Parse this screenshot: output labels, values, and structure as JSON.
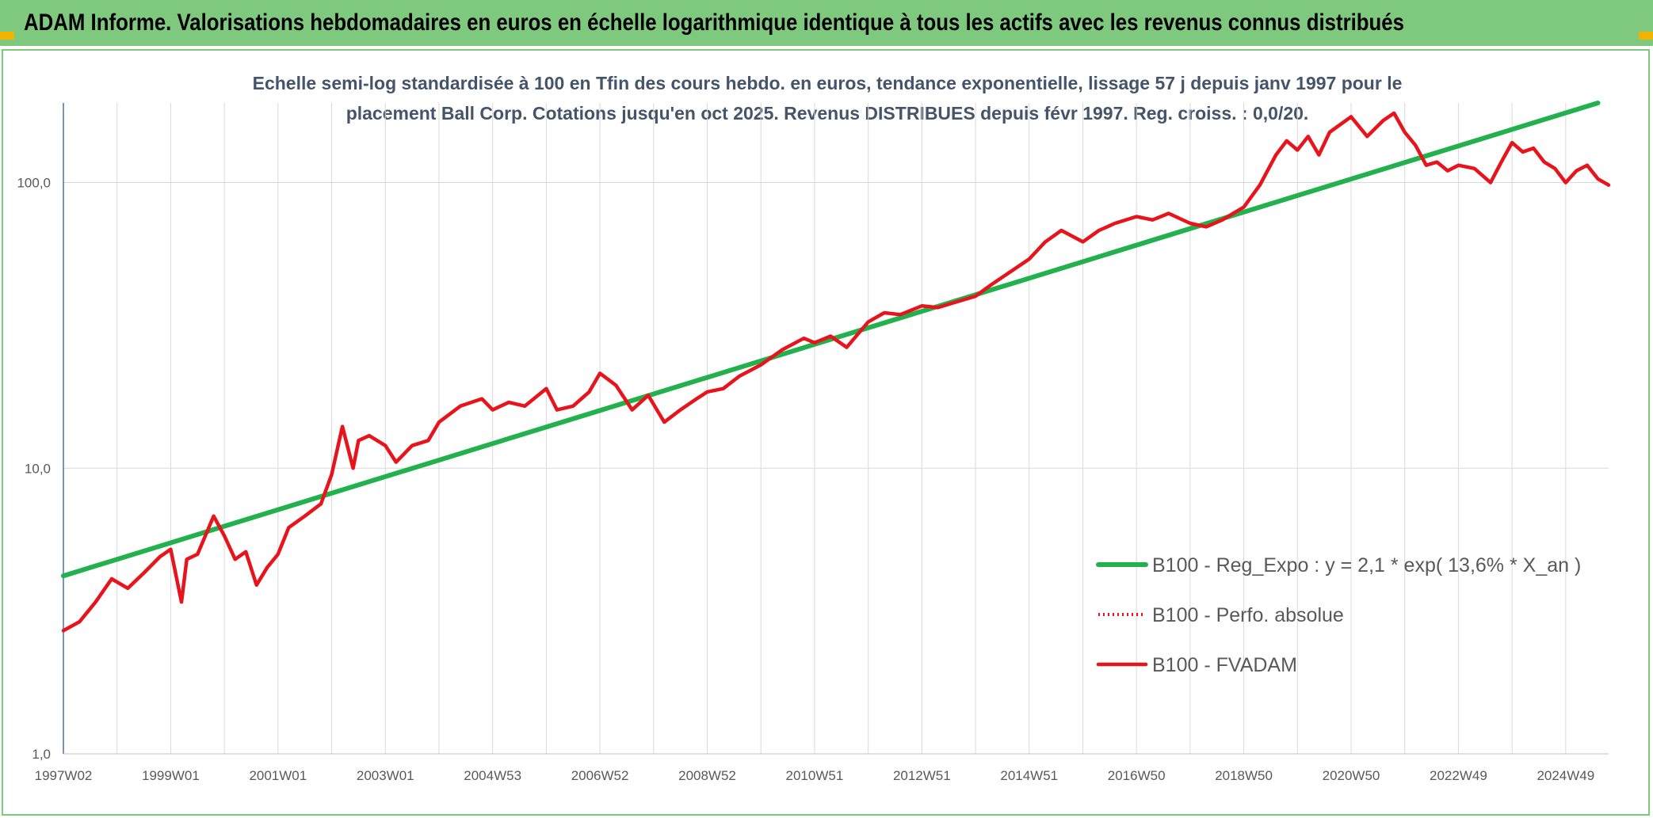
{
  "banner": {
    "title": "ADAM Informe. Valorisations hebdomadaires en euros en échelle logarithmique identique à tous les actifs avec les revenus connus distribués"
  },
  "colors": {
    "banner_bg": "#7fc97f",
    "corner_accent": "#f0b400",
    "regression_line": "#22b14c",
    "fvadam_line": "#e8141c",
    "perfo_line": "#e8141c",
    "gridline": "#d9d9d9",
    "y_axis_line": "#4a72b0",
    "text": "#595959"
  },
  "chart_data": {
    "type": "line",
    "title_lines": [
      "Echelle semi-log standardisée à 100 en Tfin des cours hebdo. en euros, tendance exponentielle, lissage 57 j depuis janv 1997 pour le",
      "placement Ball Corp. Cotations jusqu'en oct 2025. Revenus DISTRIBUES depuis févr 1997. Reg. croiss. : 0,0/20."
    ],
    "y_scale": "log",
    "ylim": [
      1,
      190
    ],
    "y_ticks": [
      {
        "value": 1,
        "label": "1,0"
      },
      {
        "value": 10,
        "label": "10,0"
      },
      {
        "value": 100,
        "label": "100,0"
      }
    ],
    "xlim": [
      1997.0,
      2025.8
    ],
    "x_ticks": [
      {
        "x": 1997.0,
        "label": "1997W02"
      },
      {
        "x": 1999.0,
        "label": "1999W01"
      },
      {
        "x": 2001.0,
        "label": "2001W01"
      },
      {
        "x": 2003.0,
        "label": "2003W01"
      },
      {
        "x": 2005.0,
        "label": "2004W53"
      },
      {
        "x": 2007.0,
        "label": "2006W52"
      },
      {
        "x": 2009.0,
        "label": "2008W52"
      },
      {
        "x": 2011.0,
        "label": "2010W51"
      },
      {
        "x": 2013.0,
        "label": "2012W51"
      },
      {
        "x": 2015.0,
        "label": "2014W51"
      },
      {
        "x": 2017.0,
        "label": "2016W50"
      },
      {
        "x": 2019.0,
        "label": "2018W50"
      },
      {
        "x": 2021.0,
        "label": "2020W50"
      },
      {
        "x": 2023.0,
        "label": "2022W49"
      },
      {
        "x": 2025.0,
        "label": "2024W49"
      }
    ],
    "grid": true,
    "legend_position": "bottom-right",
    "series": [
      {
        "name": "B100 - Reg_Expo : y = 2,1 * exp( 13,6% *  X_an )",
        "style": "solid-green",
        "x": [
          1997.0,
          2025.6
        ],
        "y": [
          4.2,
          190
        ]
      },
      {
        "name": "B100 - Perfo. absolue",
        "style": "dotted-red",
        "x": [],
        "y": []
      },
      {
        "name": "B100 - FVADAM",
        "style": "solid-red",
        "x": [
          1997.0,
          1997.3,
          1997.6,
          1997.9,
          1998.2,
          1998.5,
          1998.8,
          1999.0,
          1999.2,
          1999.3,
          1999.5,
          1999.8,
          2000.0,
          2000.2,
          2000.4,
          2000.6,
          2000.8,
          2001.0,
          2001.2,
          2001.5,
          2001.8,
          2002.0,
          2002.2,
          2002.4,
          2002.5,
          2002.7,
          2003.0,
          2003.2,
          2003.5,
          2003.8,
          2004.0,
          2004.4,
          2004.8,
          2005.0,
          2005.3,
          2005.6,
          2006.0,
          2006.2,
          2006.5,
          2006.8,
          2007.0,
          2007.3,
          2007.6,
          2007.9,
          2008.2,
          2008.5,
          2008.8,
          2009.0,
          2009.3,
          2009.6,
          2010.0,
          2010.4,
          2010.8,
          2011.0,
          2011.3,
          2011.6,
          2012.0,
          2012.3,
          2012.6,
          2013.0,
          2013.3,
          2013.6,
          2014.0,
          2014.3,
          2014.6,
          2015.0,
          2015.3,
          2015.6,
          2016.0,
          2016.3,
          2016.6,
          2017.0,
          2017.3,
          2017.6,
          2018.0,
          2018.3,
          2018.6,
          2019.0,
          2019.3,
          2019.6,
          2019.8,
          2020.0,
          2020.2,
          2020.4,
          2020.6,
          2021.0,
          2021.3,
          2021.6,
          2021.8,
          2022.0,
          2022.2,
          2022.4,
          2022.6,
          2022.8,
          2023.0,
          2023.3,
          2023.6,
          2023.8,
          2024.0,
          2024.2,
          2024.4,
          2024.6,
          2024.8,
          2025.0,
          2025.2,
          2025.4,
          2025.6,
          2025.8
        ],
        "y": [
          2.7,
          2.9,
          3.4,
          4.1,
          3.8,
          4.3,
          4.9,
          5.2,
          3.4,
          4.8,
          5.0,
          6.8,
          5.8,
          4.8,
          5.1,
          3.9,
          4.5,
          5.0,
          6.2,
          6.8,
          7.5,
          9.5,
          14.0,
          10.0,
          12.5,
          13.0,
          12.0,
          10.5,
          12.0,
          12.5,
          14.5,
          16.5,
          17.5,
          16.0,
          17.0,
          16.5,
          19.0,
          16.0,
          16.5,
          18.5,
          21.5,
          19.5,
          16.0,
          18.0,
          14.5,
          16.0,
          17.5,
          18.5,
          19.0,
          21.0,
          23.0,
          26.0,
          28.5,
          27.5,
          29.0,
          26.5,
          32.5,
          35.0,
          34.5,
          37.0,
          36.5,
          38.0,
          40.0,
          44.0,
          48.0,
          54.0,
          62.0,
          68.0,
          62.0,
          68.0,
          72.0,
          76.0,
          74.0,
          78.0,
          72.0,
          70.0,
          74.0,
          82.0,
          98.0,
          125.0,
          140.0,
          130.0,
          145.0,
          125.0,
          150.0,
          170.0,
          145.0,
          165.0,
          175.0,
          150.0,
          135.0,
          115.0,
          118.0,
          110.0,
          115.0,
          112.0,
          100.0,
          118.0,
          138.0,
          128.0,
          132.0,
          118.0,
          112.0,
          100.0,
          110.0,
          115.0,
          103.0,
          98.0
        ]
      }
    ],
    "legend": [
      {
        "label": "B100 - Reg_Expo : y = 2,1 * exp( 13,6% *  X_an )",
        "style": "solid-green"
      },
      {
        "label": "B100 - Perfo. absolue",
        "style": "dotted-red"
      },
      {
        "label": "B100 - FVADAM",
        "style": "solid-red"
      }
    ]
  }
}
